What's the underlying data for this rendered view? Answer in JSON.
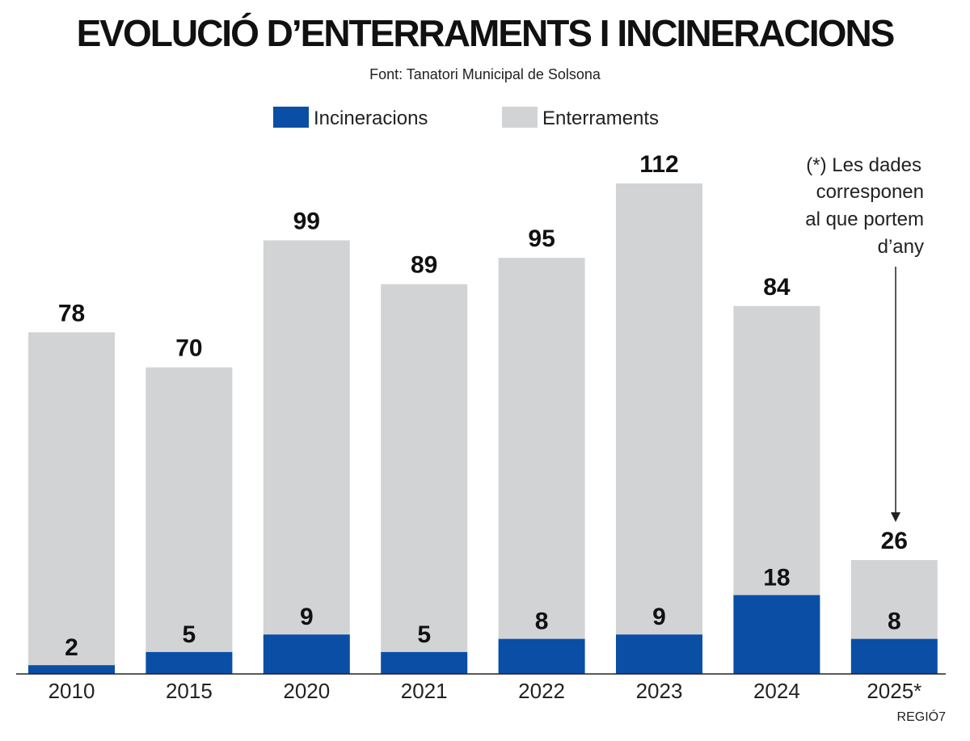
{
  "title": "EVOLUCIÓ D’ENTERRAMENTS I INCINERACIONS",
  "source": "Font: Tanatori Municipal de Solsona",
  "brand": "REGIÓ7",
  "colors": {
    "incineracions": "#0a4ea6",
    "enterraments": "#d2d3d5",
    "text": "#111111"
  },
  "chart_data": {
    "type": "bar",
    "stacked": true,
    "categories": [
      "2010",
      "2015",
      "2020",
      "2021",
      "2022",
      "2023",
      "2024",
      "2025*"
    ],
    "series": [
      {
        "name": "Incineracions",
        "values": [
          2,
          5,
          9,
          5,
          8,
          9,
          18,
          8
        ]
      },
      {
        "name": "Enterraments",
        "values": [
          76,
          65,
          90,
          84,
          87,
          103,
          66,
          18
        ]
      }
    ],
    "totals": [
      78,
      70,
      99,
      89,
      95,
      112,
      84,
      26
    ],
    "legend": [
      "Incineracions",
      "Enterraments"
    ],
    "legend_position": "top-center",
    "ylim": [
      0,
      112
    ],
    "grid": false,
    "annotation": [
      "(*) Les dades",
      "corresponen",
      "al que portem",
      "d’any"
    ]
  }
}
